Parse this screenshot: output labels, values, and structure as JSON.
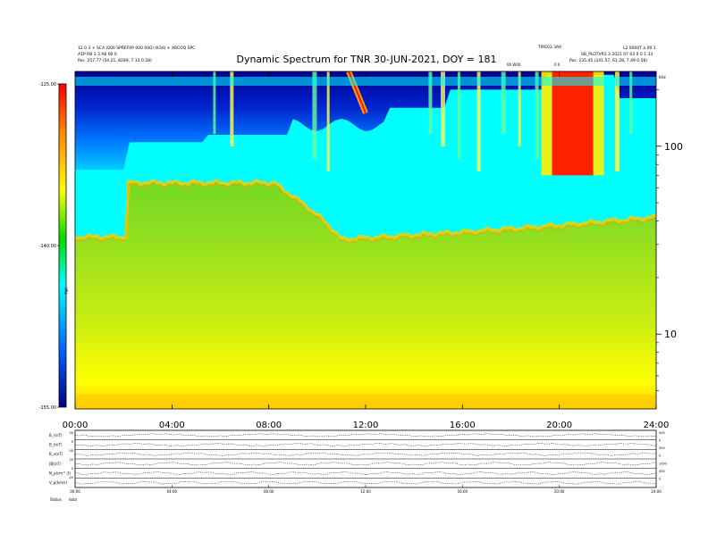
{
  "page": {
    "title": "Dynamic Spectrum for TNR 30-JUN-2021, DOY = 181"
  },
  "header_small": {
    "left_line1": "12 0.3 + SCA (000 SPREF0P 000 000) (K3d) + ARCOQ SPC",
    "left_line2": "A1P RB 3 3 A8 00 0",
    "left_line3": "Pos.  257.77 (54.21, 8289, 7.13 0.58)",
    "right_line1": "TIRE03 3A0",
    "right_line2": "L2 0000T a 00 1",
    "right_line3": "SB_PLOTVR3 3  2021 07 03  0 0 1 33",
    "right_line4": "Pos.  235.45 (241.57, 61.28, 7.49 0.58)",
    "top_marker_a": "00 W00",
    "top_marker_b": "0 0",
    "top_right_edge": "KHz"
  },
  "colors": {
    "colorbar_stops": [
      "#ff0000",
      "#ff8800",
      "#ffff00",
      "#00dd00",
      "#00ffff",
      "#0066ff",
      "#000080"
    ],
    "background_low": "#ffff00",
    "background_mid": "#66dd22",
    "background_high": "#0000aa"
  },
  "chart_data": {
    "type": "heatmap",
    "title": "Dynamic Spectrum for TNR 30-JUN-2021, DOY = 181",
    "x_tick_labels": [
      "00:00",
      "04:00",
      "08:00",
      "12:00",
      "16:00",
      "20:00",
      "24:00"
    ],
    "x_ticks_hours": [
      0,
      4,
      8,
      12,
      16,
      20,
      24
    ],
    "xlim_hours": [
      0,
      24
    ],
    "y_scale": "log",
    "y_tick_labels": [
      "10",
      "100"
    ],
    "y_ticks_khz": [
      10,
      100
    ],
    "ylim_khz": [
      4,
      250
    ],
    "colorbar": {
      "tick_labels": [
        "-125.00",
        "-140.00",
        "-155.00"
      ],
      "values": [
        -125,
        -140,
        -155
      ],
      "range": [
        -155,
        -125
      ],
      "label": "TNR"
    },
    "features": [
      {
        "name": "background boundary",
        "time_hours": [
          0,
          2.2,
          8.3,
          11,
          16,
          20,
          24
        ],
        "freq_khz": [
          33,
          65,
          62,
          32,
          35,
          38,
          42
        ]
      },
      {
        "name": "intense emission",
        "time_hours": [
          19.7,
          21.4
        ],
        "freq_khz": [
          70,
          250
        ]
      },
      {
        "name": "drifting burst",
        "time_hours": [
          11.3,
          12.0
        ],
        "freq_khz": [
          150,
          250
        ]
      }
    ],
    "lower_panel": {
      "row_labels": [
        "B_r(nT)",
        "B_t(nT)",
        "B_n(nT)",
        "|B|(nT)",
        "N_p(cm^-3)",
        "V_p(km/s)"
      ],
      "left_scale_labels": [
        "50",
        "0",
        "-50",
        "20",
        "0",
        "-20"
      ],
      "right_scale_labels": [
        "500",
        "0",
        "500",
        "0",
        "1000",
        "500",
        "0"
      ],
      "x_tick_labels": [
        "00:00",
        "04:00",
        "08:00",
        "12:00",
        "16:00",
        "20:00",
        "24:00"
      ],
      "footer_left": "Status",
      "footer_right": "data"
    }
  }
}
